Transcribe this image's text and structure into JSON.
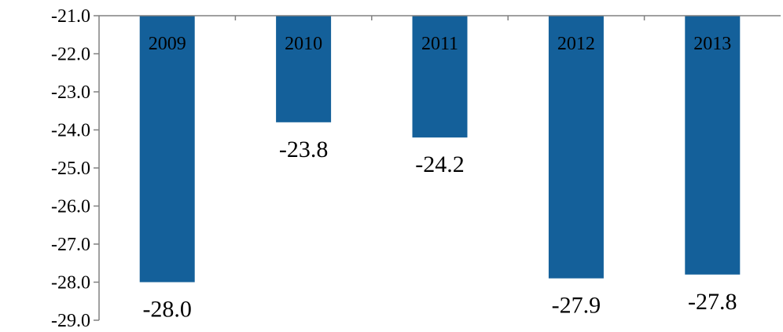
{
  "chart_data": {
    "type": "bar",
    "categories": [
      "2009",
      "2010",
      "2011",
      "2012",
      "2013"
    ],
    "values": [
      -28.0,
      -23.8,
      -24.2,
      -27.9,
      -27.8
    ],
    "data_labels": [
      "-28.0",
      "-23.8",
      "-24.2",
      "-27.9",
      "-27.8"
    ],
    "y_ticks": [
      -21.0,
      -22.0,
      -23.0,
      -24.0,
      -25.0,
      -26.0,
      -27.0,
      -28.0,
      -29.0
    ],
    "y_tick_labels": [
      "-21.0",
      "-22.0",
      "-23.0",
      "-24.0",
      "-25.0",
      "-26.0",
      "-27.0",
      "-28.0",
      "-29.0"
    ],
    "ylim": [
      -29.0,
      -21.0
    ],
    "title": "",
    "xlabel": "",
    "ylabel": "",
    "grid": false,
    "legend": "none",
    "bar_color": "#14609A"
  }
}
